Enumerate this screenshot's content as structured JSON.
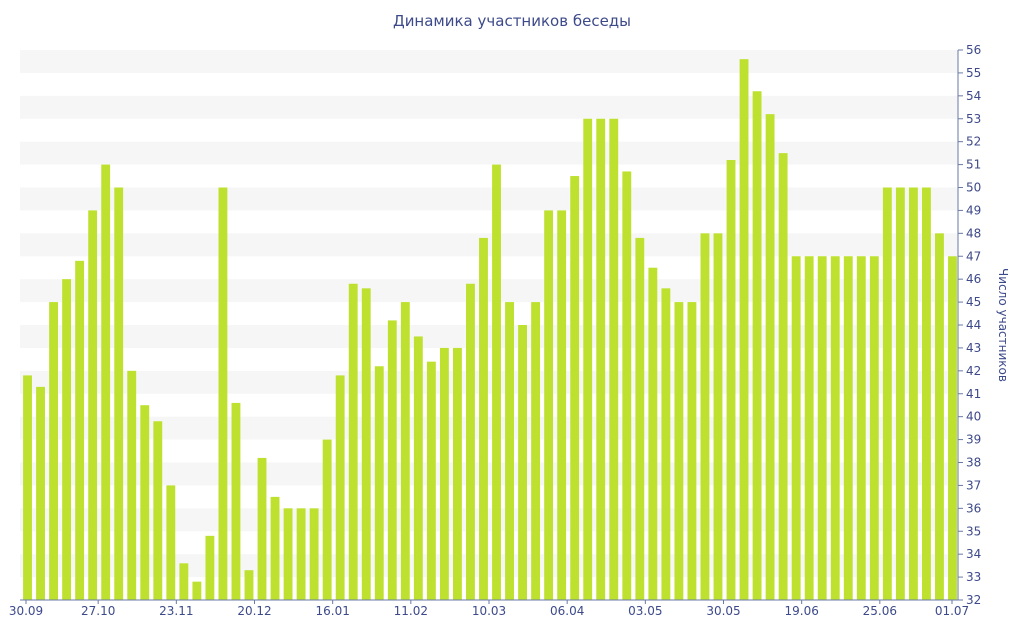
{
  "chart_data": {
    "type": "bar",
    "title": "Динамика участников беседы",
    "ylabel": "Число участников",
    "xlabel": "",
    "ylim": [
      32,
      56
    ],
    "yticks": [
      32,
      33,
      34,
      35,
      36,
      37,
      38,
      39,
      40,
      41,
      42,
      43,
      44,
      45,
      46,
      47,
      48,
      49,
      50,
      51,
      52,
      53,
      54,
      55,
      56
    ],
    "x_tick_labels": [
      "30.09",
      "27.10",
      "23.11",
      "20.12",
      "16.01",
      "11.02",
      "10.03",
      "06.04",
      "03.05",
      "30.05",
      "19.06",
      "25.06",
      "01.07"
    ],
    "grid": "horizontal alternating bands",
    "y_axis_position": "right",
    "bar_color": "#bde12e",
    "values": [
      41.8,
      41.3,
      45,
      46,
      46.8,
      49,
      51,
      50,
      42,
      40.5,
      39.8,
      37,
      33.6,
      32.8,
      34.8,
      50,
      40.6,
      33.3,
      38.2,
      36.5,
      36,
      36,
      36,
      39,
      41.8,
      45.8,
      45.6,
      42.2,
      44.2,
      45,
      43.5,
      42.4,
      43,
      43,
      45.8,
      47.8,
      51,
      45,
      44,
      45,
      49,
      49,
      50.5,
      53,
      53,
      53,
      50.7,
      47.8,
      46.5,
      45.6,
      45,
      45,
      48,
      48,
      51.2,
      55.6,
      54.2,
      53.2,
      51.5,
      47,
      47,
      47,
      47,
      47,
      47,
      47,
      50,
      50,
      50,
      50,
      48,
      47
    ]
  }
}
